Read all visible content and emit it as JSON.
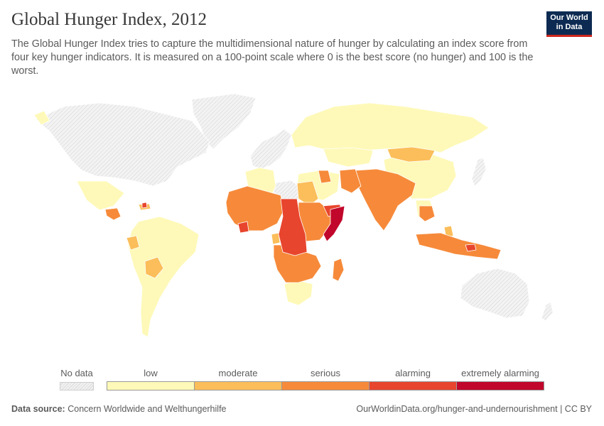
{
  "header": {
    "title": "Global Hunger Index, 2012",
    "subtitle": "The Global Hunger Index tries to capture the multidimensional nature of hunger by calculating an index score from four key hunger indicators. It is measured on a 100-point scale where 0 is the best score (no hunger) and 100 is the worst.",
    "logo_line1": "Our World",
    "logo_line2": "in Data"
  },
  "legend": {
    "no_data_label": "No data",
    "bins": [
      {
        "label": "low",
        "color": "#fef9b8"
      },
      {
        "label": "moderate",
        "color": "#fbbe5a"
      },
      {
        "label": "serious",
        "color": "#f68a3a"
      },
      {
        "label": "alarming",
        "color": "#e8452e"
      },
      {
        "label": "extremely alarming",
        "color": "#c1072b"
      }
    ]
  },
  "colors": {
    "no_data": "#e6e6e6",
    "no_data_hatch": "#cfcfcf",
    "border": "#ffffff",
    "low": "#fef9b8",
    "moderate": "#fbbe5a",
    "serious": "#f68a3a",
    "alarming": "#e8452e",
    "extremely_alarming": "#c1072b",
    "logo_bg": "#0d2b52",
    "logo_accent": "#ce261e"
  },
  "footer": {
    "source_label": "Data source:",
    "source_text": "Concern Worldwide and Welthungerhilfe",
    "url_text": "OurWorldinData.org/hunger-and-undernourishment | CC BY"
  }
}
